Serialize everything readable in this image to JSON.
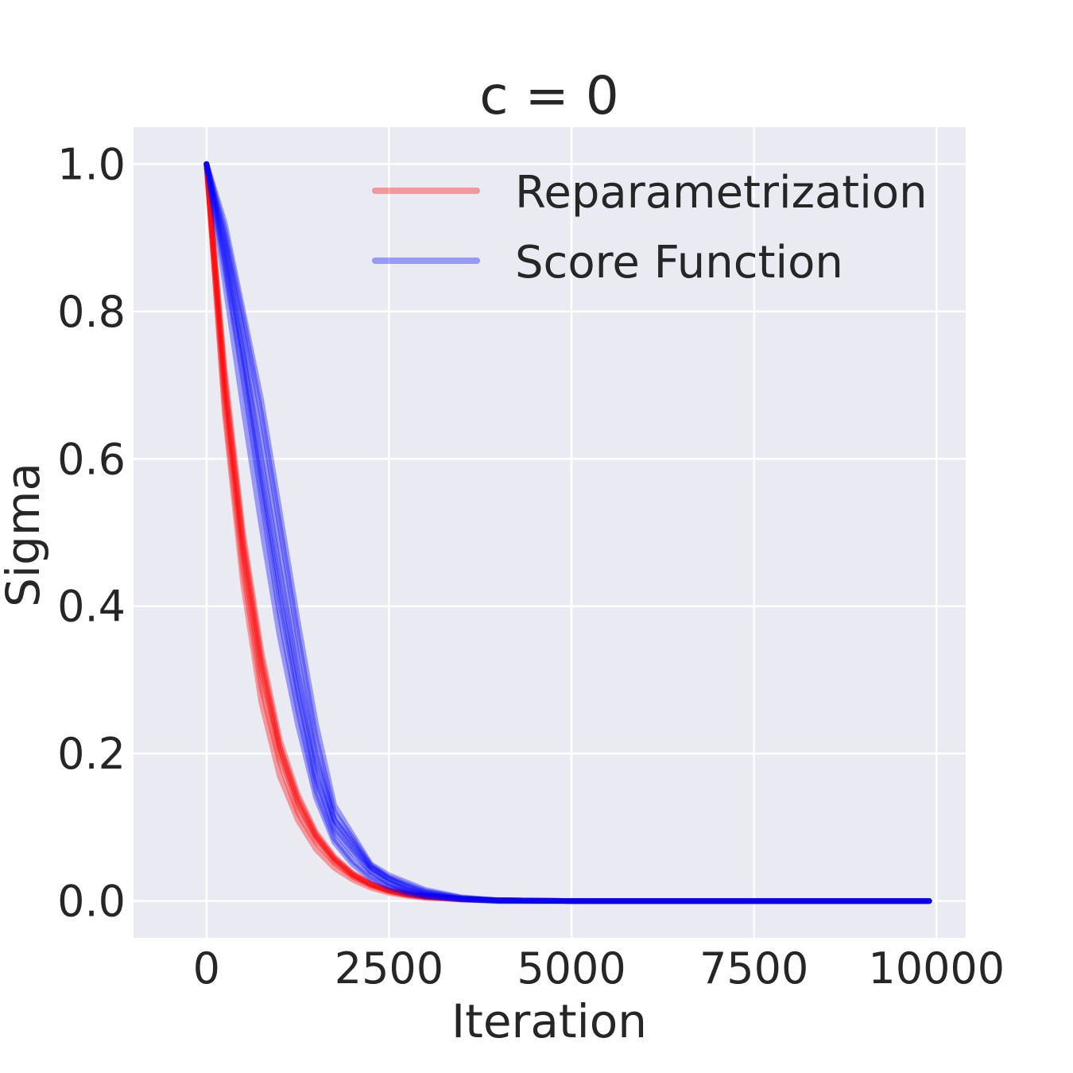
{
  "chart_data": {
    "type": "line",
    "title": "c = 0",
    "xlabel": "Iteration",
    "ylabel": "Sigma",
    "xlim": [
      -1000,
      10400
    ],
    "ylim": [
      -0.05,
      1.05
    ],
    "xticks": [
      0,
      2500,
      5000,
      7500,
      10000
    ],
    "xtick_labels": [
      "0",
      "2500",
      "5000",
      "7500",
      "10000"
    ],
    "yticks": [
      0.0,
      0.2,
      0.4,
      0.6,
      0.8,
      1.0
    ],
    "ytick_labels": [
      "0.0",
      "0.2",
      "0.4",
      "0.6",
      "0.8",
      "1.0"
    ],
    "grid": true,
    "legend_position": "top-right",
    "background_color": "#eaeaf2",
    "grid_color": "#ffffff",
    "x": [
      0,
      250,
      500,
      750,
      1000,
      1250,
      1500,
      1750,
      2000,
      2250,
      2500,
      2750,
      3000,
      3500,
      4000,
      5000,
      6000,
      7000,
      8000,
      9000,
      9900
    ],
    "series": [
      {
        "name": "Reparametrization",
        "color": "#ff0000",
        "values": [
          1.0,
          0.69,
          0.47,
          0.31,
          0.2,
          0.13,
          0.085,
          0.055,
          0.035,
          0.022,
          0.014,
          0.009,
          0.006,
          0.003,
          0.001,
          0.0,
          0.0,
          0.0,
          0.0,
          0.0,
          0.0
        ]
      },
      {
        "color": "#ff0000",
        "values": [
          1.0,
          0.67,
          0.45,
          0.29,
          0.19,
          0.12,
          0.08,
          0.052,
          0.033,
          0.021,
          0.013,
          0.008,
          0.005,
          0.002,
          0.001,
          0.0,
          0.0,
          0.0,
          0.0,
          0.0,
          0.0
        ]
      },
      {
        "color": "#ff0000",
        "values": [
          1.0,
          0.71,
          0.49,
          0.33,
          0.21,
          0.14,
          0.09,
          0.058,
          0.037,
          0.023,
          0.015,
          0.009,
          0.006,
          0.003,
          0.001,
          0.0,
          0.0,
          0.0,
          0.0,
          0.0,
          0.0
        ]
      },
      {
        "color": "#ff0000",
        "values": [
          1.0,
          0.66,
          0.43,
          0.27,
          0.17,
          0.11,
          0.07,
          0.045,
          0.029,
          0.018,
          0.011,
          0.007,
          0.004,
          0.002,
          0.001,
          0.0,
          0.0,
          0.0,
          0.0,
          0.0,
          0.0
        ]
      },
      {
        "color": "#ff0000",
        "values": [
          1.0,
          0.7,
          0.48,
          0.32,
          0.21,
          0.135,
          0.088,
          0.057,
          0.036,
          0.023,
          0.014,
          0.009,
          0.006,
          0.003,
          0.001,
          0.0,
          0.0,
          0.0,
          0.0,
          0.0,
          0.0
        ]
      },
      {
        "color": "#ff0000",
        "values": [
          1.0,
          0.72,
          0.5,
          0.34,
          0.22,
          0.145,
          0.093,
          0.06,
          0.038,
          0.024,
          0.015,
          0.01,
          0.006,
          0.003,
          0.001,
          0.0,
          0.0,
          0.0,
          0.0,
          0.0,
          0.0
        ]
      },
      {
        "name": "Score Function",
        "color": "#0000ff",
        "values": [
          1.0,
          0.9,
          0.77,
          0.63,
          0.48,
          0.33,
          0.2,
          0.11,
          0.075,
          0.045,
          0.03,
          0.02,
          0.012,
          0.004,
          0.001,
          0.0,
          0.0,
          0.0,
          0.0,
          0.0,
          0.0
        ]
      },
      {
        "color": "#0000ff",
        "values": [
          1.0,
          0.88,
          0.74,
          0.58,
          0.43,
          0.29,
          0.17,
          0.1,
          0.07,
          0.04,
          0.025,
          0.015,
          0.009,
          0.003,
          0.001,
          0.0,
          0.0,
          0.0,
          0.0,
          0.0,
          0.0
        ]
      },
      {
        "color": "#0000ff",
        "values": [
          1.0,
          0.86,
          0.71,
          0.55,
          0.39,
          0.26,
          0.15,
          0.085,
          0.055,
          0.033,
          0.02,
          0.012,
          0.007,
          0.002,
          0.0,
          0.0,
          0.0,
          0.0,
          0.0,
          0.0,
          0.0
        ]
      },
      {
        "color": "#0000ff",
        "values": [
          1.0,
          0.92,
          0.8,
          0.68,
          0.53,
          0.38,
          0.24,
          0.13,
          0.09,
          0.05,
          0.035,
          0.025,
          0.015,
          0.005,
          0.001,
          0.0,
          0.0,
          0.0,
          0.0,
          0.0,
          0.0
        ]
      },
      {
        "color": "#0000ff",
        "values": [
          1.0,
          0.84,
          0.67,
          0.51,
          0.36,
          0.24,
          0.14,
          0.08,
          0.05,
          0.03,
          0.018,
          0.011,
          0.006,
          0.002,
          0.0,
          0.0,
          0.0,
          0.0,
          0.0,
          0.0,
          0.0
        ]
      },
      {
        "color": "#0000ff",
        "values": [
          1.0,
          0.89,
          0.75,
          0.6,
          0.45,
          0.31,
          0.19,
          0.11,
          0.08,
          0.047,
          0.03,
          0.018,
          0.01,
          0.003,
          0.001,
          0.0,
          0.0,
          0.0,
          0.0,
          0.0,
          0.0
        ]
      },
      {
        "color": "#0000ff",
        "values": [
          1.0,
          0.87,
          0.72,
          0.56,
          0.41,
          0.28,
          0.165,
          0.095,
          0.065,
          0.04,
          0.024,
          0.014,
          0.008,
          0.003,
          0.0,
          0.0,
          0.0,
          0.0,
          0.0,
          0.0,
          0.0
        ]
      },
      {
        "color": "#0000ff",
        "values": [
          1.0,
          0.91,
          0.79,
          0.66,
          0.51,
          0.36,
          0.22,
          0.12,
          0.085,
          0.048,
          0.032,
          0.022,
          0.013,
          0.004,
          0.001,
          0.0,
          0.0,
          0.0,
          0.0,
          0.0,
          0.0
        ]
      }
    ]
  }
}
